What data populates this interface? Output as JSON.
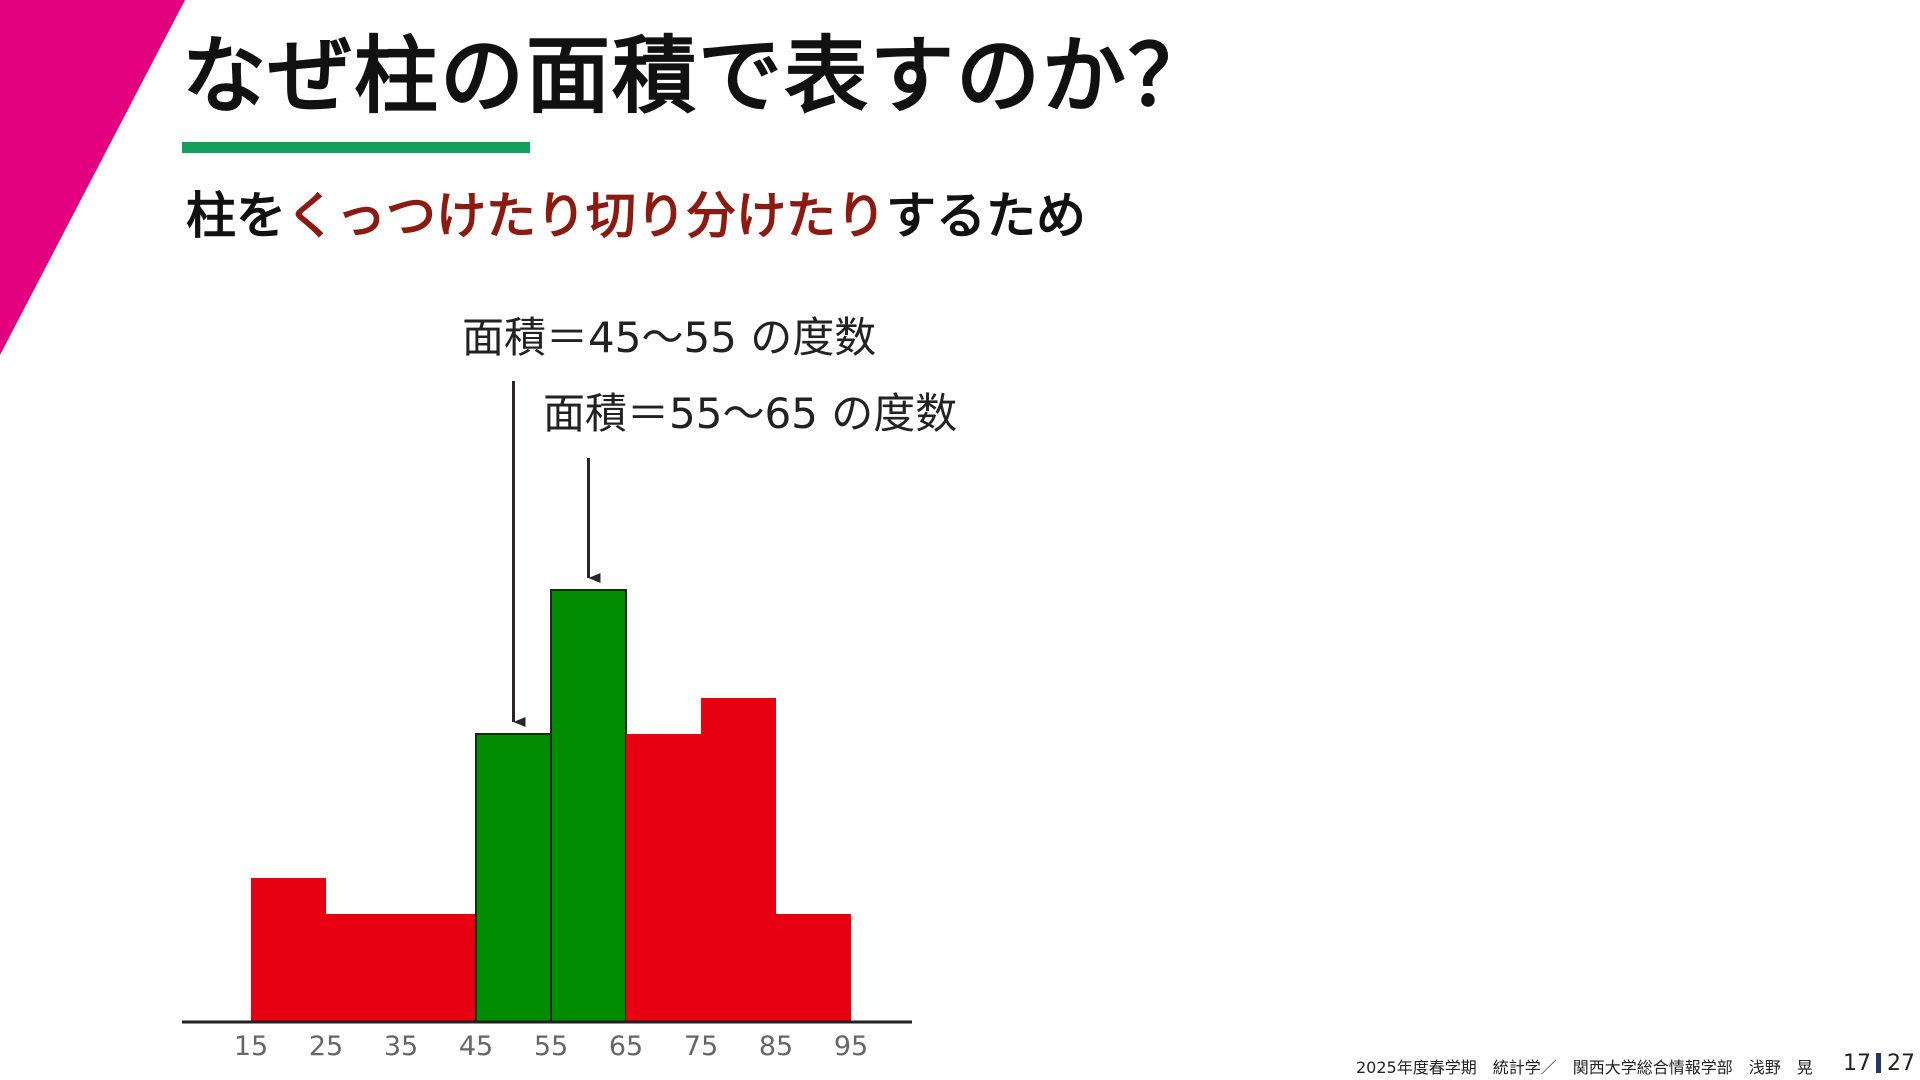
{
  "slide": {
    "title": "なぜ柱の面積で表すのか？",
    "subtitle_parts": [
      {
        "text": "柱を",
        "color": "#111111"
      },
      {
        "text": "くっつけたり切り分けたり",
        "color": "#8b1a10"
      },
      {
        "text": "するため",
        "color": "#111111"
      }
    ],
    "footer": "2025年度春学期　統計学／　関西大学総合情報学部　浅野　晃",
    "page_current": "17",
    "page_total": "27"
  },
  "colors": {
    "accent_magenta": "#e2007f",
    "underline_green": "#14a05a",
    "bar_red": "#e60012",
    "bar_green": "#008c00",
    "annotation_arrow": "#2b2326"
  },
  "chart_data": {
    "type": "bar",
    "bin_edges": [
      15,
      25,
      35,
      45,
      55,
      65,
      75,
      85,
      95
    ],
    "x_tick_labels": [
      "15",
      "25",
      "35",
      "45",
      "55",
      "65",
      "75",
      "85",
      "95"
    ],
    "values": [
      4,
      3,
      3,
      8,
      12,
      8,
      9,
      3
    ],
    "highlight_bins": [
      3,
      4
    ],
    "ylim": [
      0,
      13
    ],
    "annotations": [
      {
        "text": "面積＝45～55 の度数",
        "target_bin": 3
      },
      {
        "text": "面積＝55～65 の度数",
        "target_bin": 4
      }
    ]
  }
}
